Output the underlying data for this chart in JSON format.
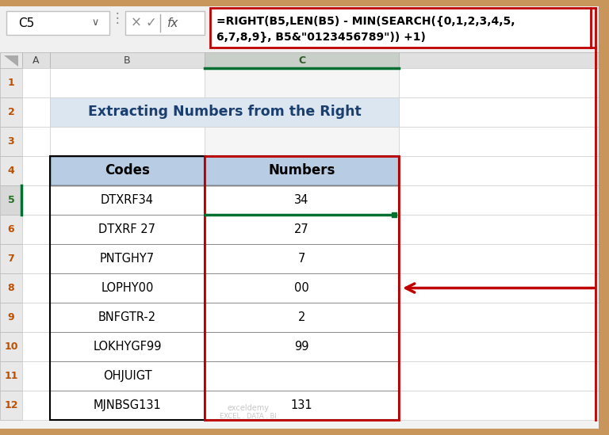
{
  "title": "Extracting Numbers from the Right",
  "formula_bar_cell": "C5",
  "formula_text_line1": "=RIGHT(B5,LEN(B5) - MIN(SEARCH({0,1,2,3,4,5,",
  "formula_text_line2": "6,7,8,9}, B5&\"0123456789\")) +1)",
  "table_header": [
    "Codes",
    "Numbers"
  ],
  "codes": [
    "DTXRF34",
    "DTXRF 27",
    "PNTGHY7",
    "LOPHY00",
    "BNFGTR-2",
    "LOKHYGF99",
    "OHJUIGT",
    "MJNBSG131"
  ],
  "numbers": [
    "34",
    "27",
    "7",
    "00",
    "2",
    "99",
    "",
    "131"
  ],
  "header_bg": "#b8cce4",
  "title_bg": "#dce6f1",
  "formula_border": "#c00000",
  "arrow_color": "#c00000",
  "green_line_color": "#007030",
  "excel_bg": "#f2f2f2",
  "row_num_bg": "#e8e8e8",
  "row_num_color": "#c05000",
  "col_header_bg": "#d4d4d4",
  "col_c_header_bg": "#c0c8c0",
  "col_c_row_bg": "#f0f0f0",
  "row5_num_color": "#207020",
  "row5_num_bg": "#d8d8d8",
  "outer_bg": "#c8965a",
  "watermark_text1": "exceldemy",
  "watermark_text2": "EXCEL . DATA . BI"
}
